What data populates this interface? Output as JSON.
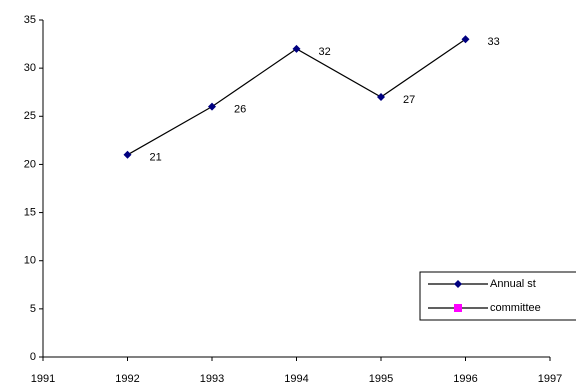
{
  "chart_data": {
    "type": "line",
    "x": [
      1992,
      1993,
      1994,
      1995,
      1996
    ],
    "series": [
      {
        "name": "Annual st",
        "color": "#000080",
        "marker": "diamond",
        "values": [
          21,
          26,
          32,
          27,
          33
        ]
      },
      {
        "name": "committee",
        "color": "#ff00ff",
        "marker": "square",
        "values": [
          null,
          null,
          null,
          null,
          null
        ]
      }
    ],
    "xlim": [
      1991,
      1997
    ],
    "xticks": [
      1991,
      1992,
      1993,
      1994,
      1995,
      1996,
      1997
    ],
    "ylim": [
      0,
      35
    ],
    "yticks": [
      0,
      5,
      10,
      15,
      20,
      25,
      30,
      35
    ],
    "grid": false,
    "data_labels": true,
    "legend": "lower right"
  }
}
